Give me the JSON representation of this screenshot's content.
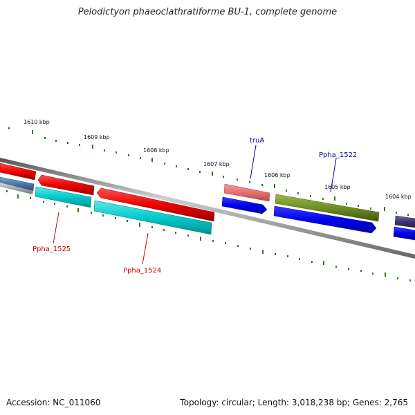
{
  "title": "Pelodictyon phaeoclathratiforme BU-1, complete genome",
  "footer": {
    "accession": "Accession: NC_011060",
    "summary": "Topology: circular; Length: 3,018,238 bp; Genes: 2,765"
  },
  "scale_labels": [
    "1610 kbp",
    "1609 kbp",
    "1608 kbp",
    "1607 kbp",
    "1606 kbp",
    "1605 kbp",
    "1604 kbp"
  ],
  "gene_labels": {
    "forward": [
      "truA",
      "Ppha_1522"
    ],
    "reverse": [
      "Ppha_1525",
      "Ppha_1524"
    ]
  },
  "colors": {
    "forward_label": "#0000aa",
    "reverse_label": "#cc0000",
    "tick": "#2e7d1e",
    "backbone": "#8a8a8a"
  }
}
